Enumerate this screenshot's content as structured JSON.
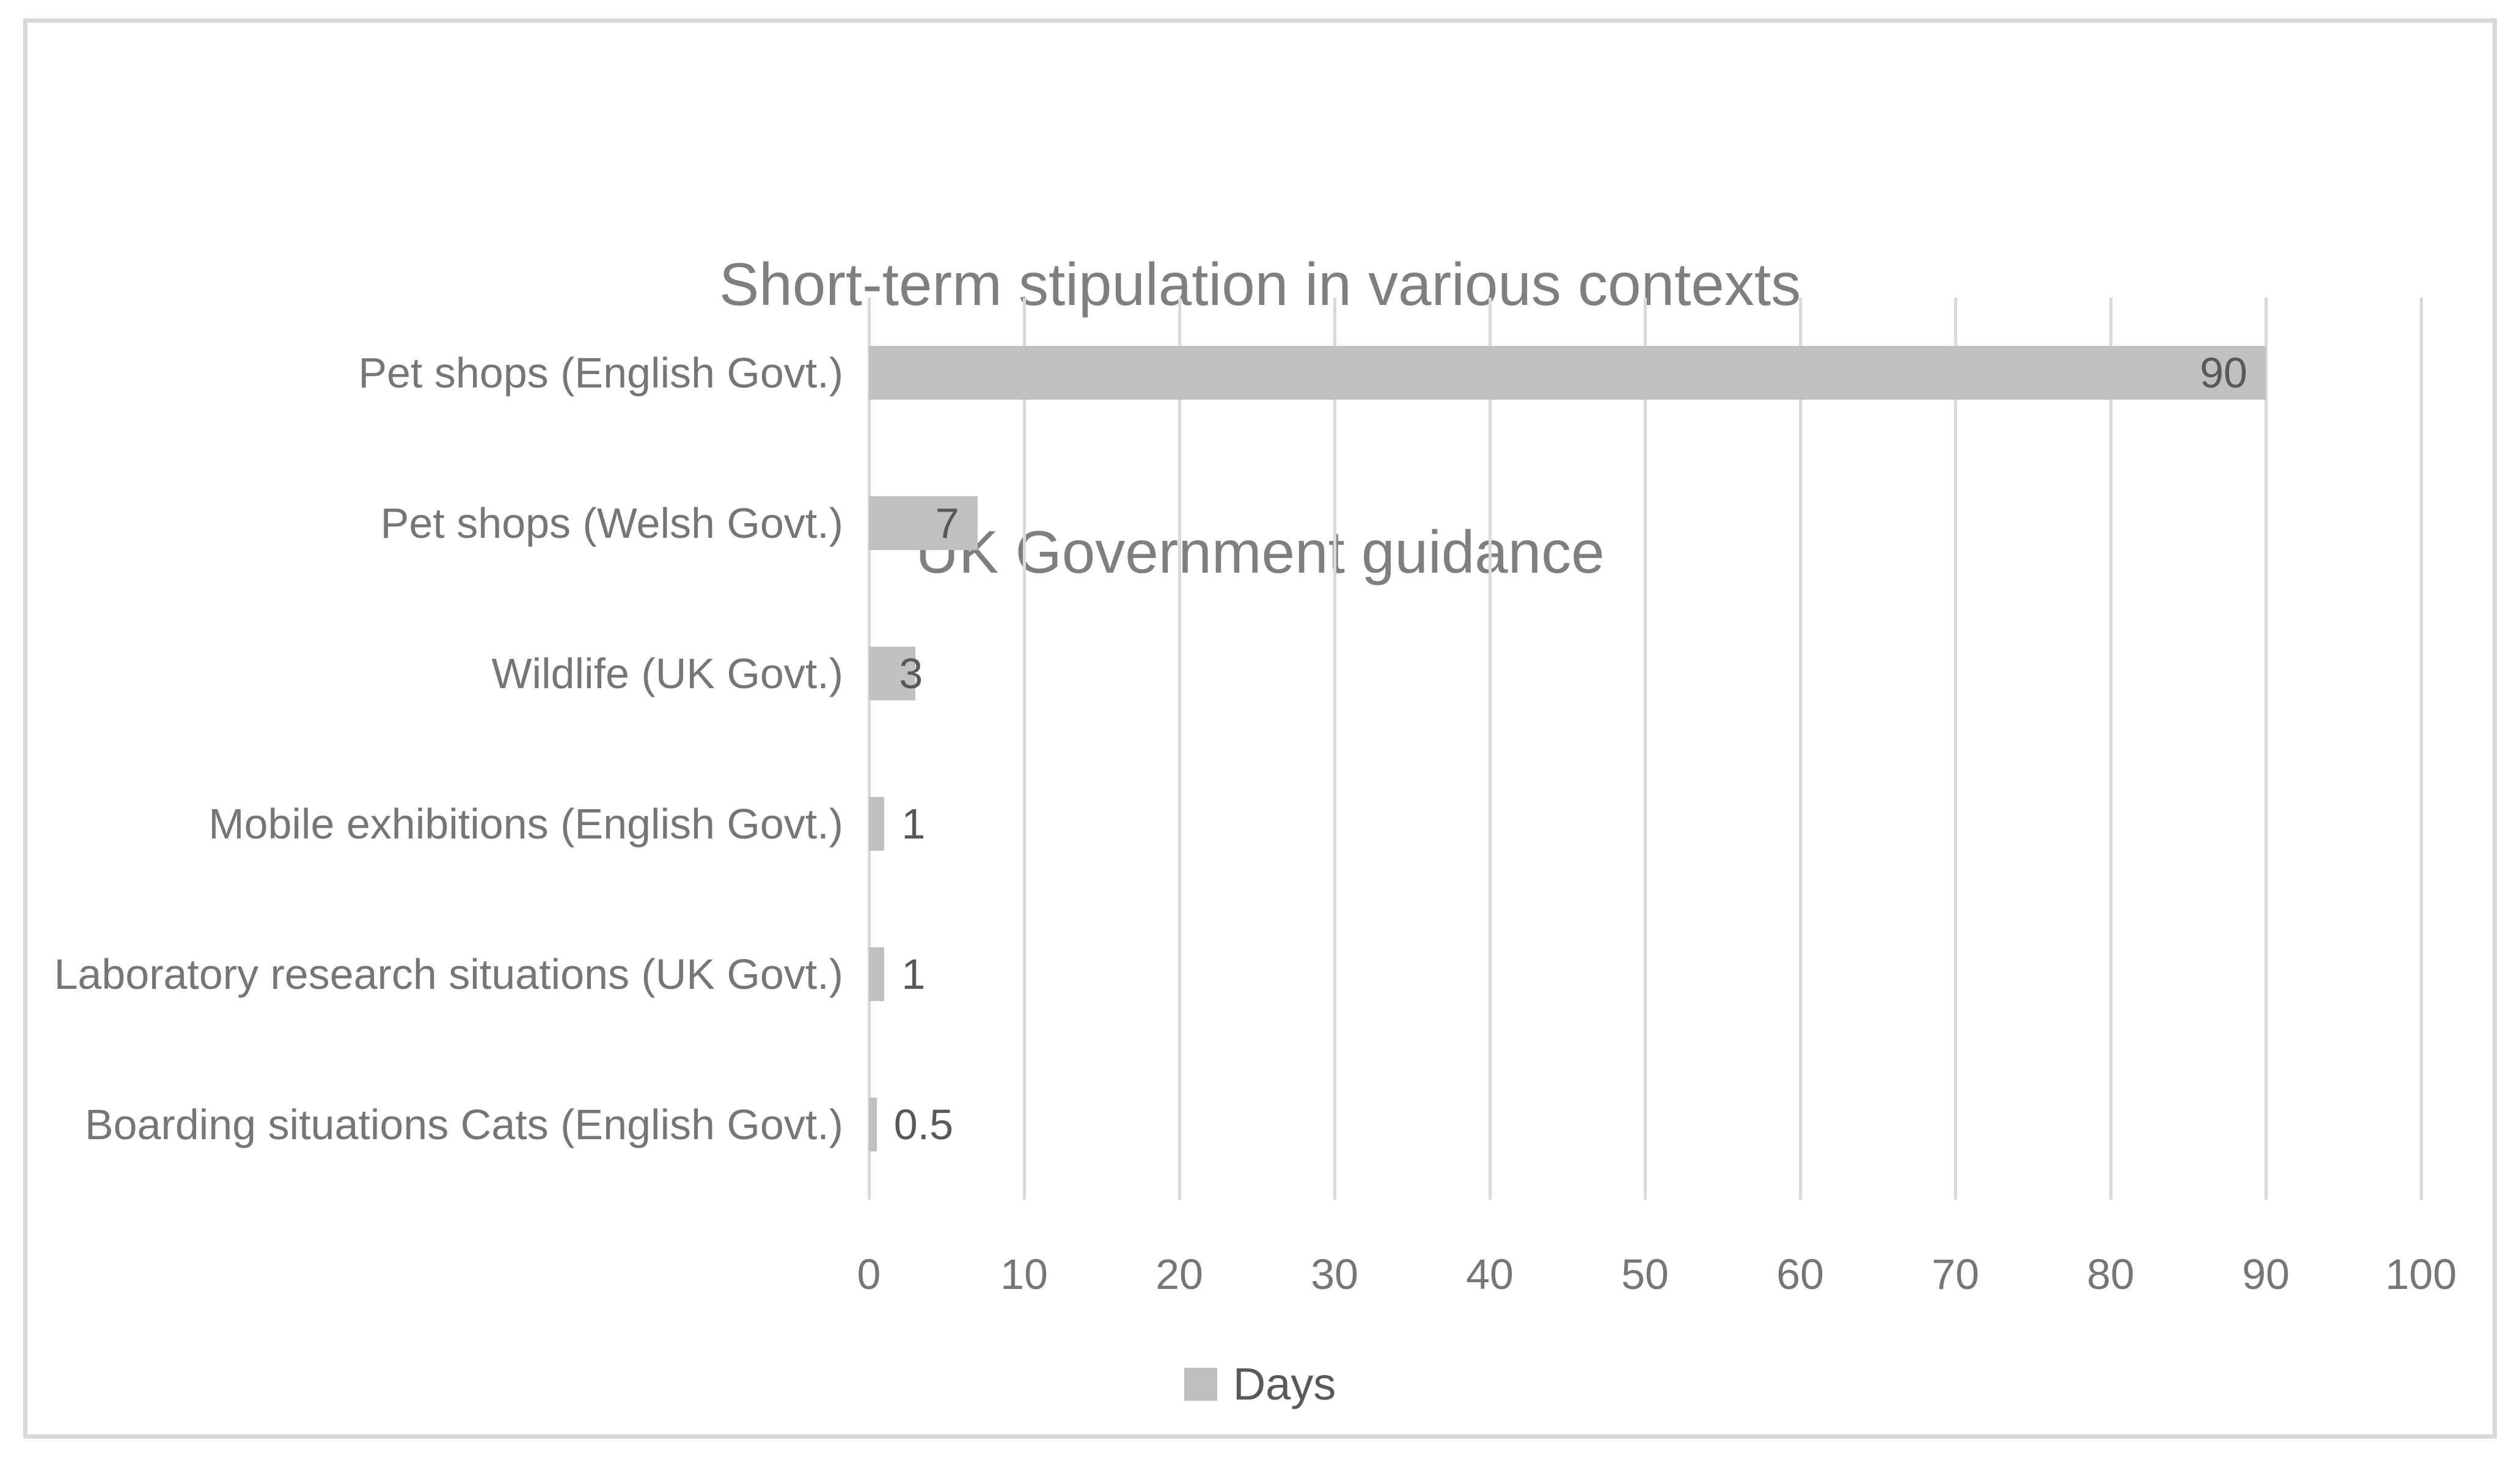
{
  "chart_data": {
    "type": "bar",
    "orientation": "horizontal",
    "title_lines": [
      "Short-term stipulation in various contexts",
      "UK Government guidance"
    ],
    "categories": [
      "Pet shops (English Govt.)",
      "Pet shops (Welsh Govt.)",
      "Wildlife (UK Govt.)",
      "Mobile exhibitions (English Govt.)",
      "Laboratory research situations (UK Govt.)",
      "Boarding situations Cats (English Govt.)"
    ],
    "series": [
      {
        "name": "Days",
        "values": [
          90,
          7,
          3,
          1,
          1,
          0.5
        ]
      }
    ],
    "data_labels": [
      "90",
      "7",
      "3",
      "1",
      "1",
      "0.5"
    ],
    "legend": [
      "Days"
    ],
    "legend_position": "bottom",
    "xlabel": "",
    "ylabel": "",
    "xlim": [
      0,
      100
    ],
    "x_ticks": [
      0,
      10,
      20,
      30,
      40,
      50,
      60,
      70,
      80,
      90,
      100
    ],
    "grid": "vertical gridlines on",
    "colors": {
      "bar_fill": "#c0c0c0",
      "gridline": "#d9d9d9",
      "frame_border": "#d9d9d9",
      "title_text": "#7f7f7f",
      "category_text": "#767676",
      "tick_text": "#767676",
      "data_label_text": "#595959",
      "legend_text": "#595959",
      "legend_swatch": "#bfbfbf",
      "background": "#ffffff"
    }
  }
}
